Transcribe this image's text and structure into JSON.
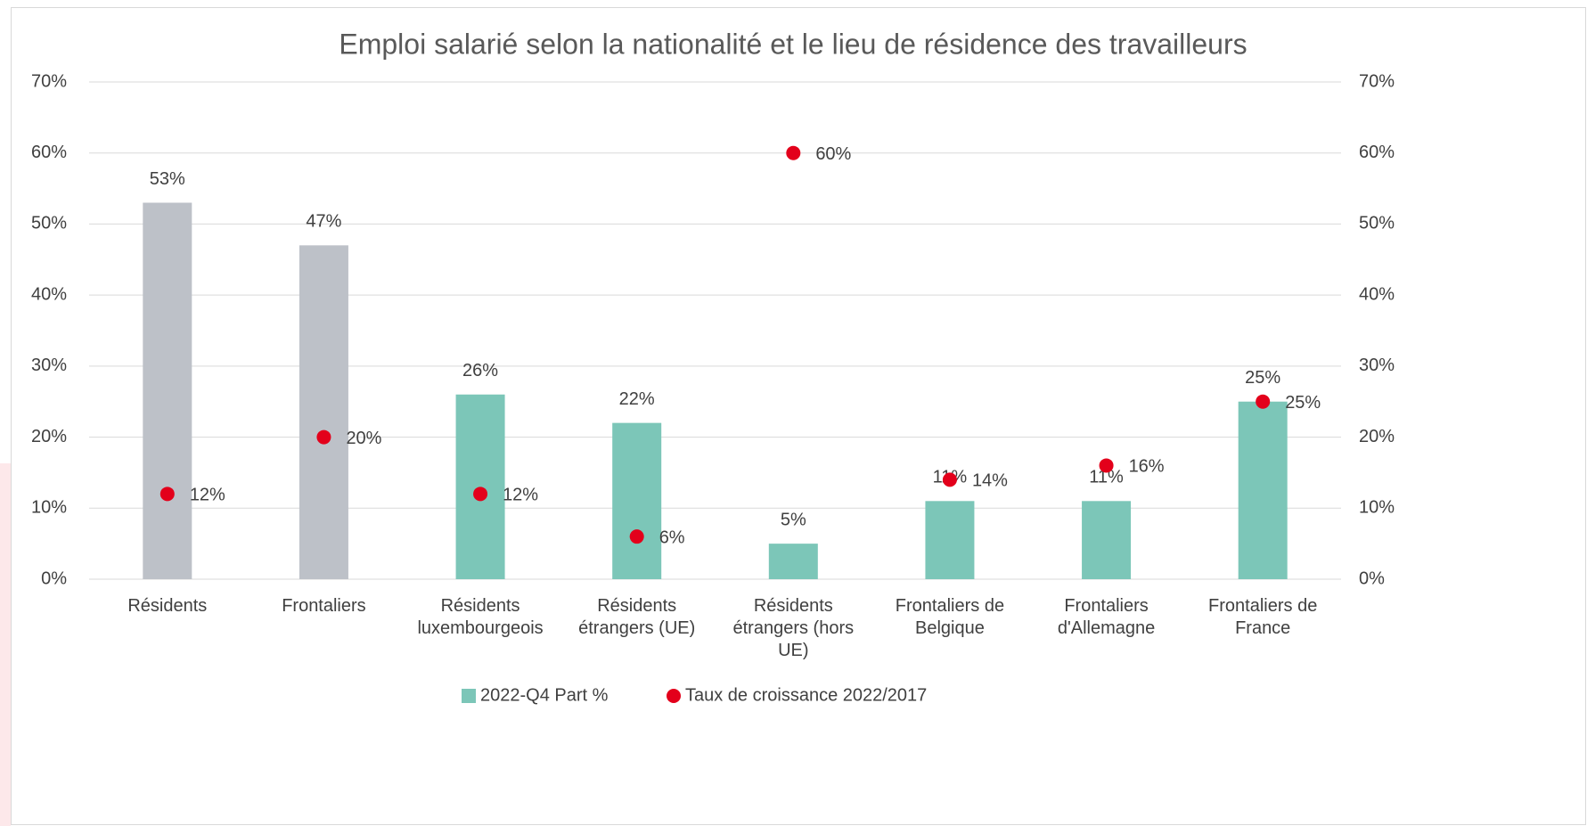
{
  "chart_data": {
    "type": "bar",
    "title": "Emploi salarié selon la nationalité et le lieu de résidence des travailleurs",
    "categories": [
      "Résidents",
      "Frontaliers",
      "Résidents luxembourgeois",
      "Résidents étrangers (UE)",
      "Résidents étrangers (hors UE)",
      "Frontaliers de Belgique",
      "Frontaliers d'Allemagne",
      "Frontaliers de France"
    ],
    "series": [
      {
        "name": "2022-Q4 Part %",
        "type": "bar",
        "color": "#7cc6b8",
        "colors": [
          "#bdc1c8",
          "#bdc1c8",
          "#7cc6b8",
          "#7cc6b8",
          "#7cc6b8",
          "#7cc6b8",
          "#7cc6b8",
          "#7cc6b8"
        ],
        "values": [
          53,
          47,
          26,
          22,
          5,
          11,
          11,
          25
        ],
        "value_labels": [
          "53%",
          "47%",
          "26%",
          "22%",
          "5%",
          "11%",
          "11%",
          "25%"
        ]
      },
      {
        "name": "Taux de croissance 2022/2017",
        "type": "scatter",
        "axis": "y2",
        "color": "#e3001b",
        "values": [
          12,
          20,
          12,
          6,
          60,
          14,
          16,
          25
        ],
        "value_labels": [
          "12%",
          "20%",
          "12%",
          "6%",
          "60%",
          "14%",
          "16%",
          "25%"
        ]
      }
    ],
    "ylim": [
      0,
      70
    ],
    "yticks": [
      {
        "value": 0,
        "label": "0%"
      },
      {
        "value": 10,
        "label": "10%"
      },
      {
        "value": 20,
        "label": "20%"
      },
      {
        "value": 30,
        "label": "30%"
      },
      {
        "value": 40,
        "label": "40%"
      },
      {
        "value": 50,
        "label": "50%"
      },
      {
        "value": 60,
        "label": "60%"
      },
      {
        "value": 70,
        "label": "70%"
      }
    ],
    "y2lim": [
      0,
      70
    ],
    "y2ticks": [
      {
        "value": 0,
        "label": "0%"
      },
      {
        "value": 10,
        "label": "10%"
      },
      {
        "value": 20,
        "label": "20%"
      },
      {
        "value": 30,
        "label": "30%"
      },
      {
        "value": 40,
        "label": "40%"
      },
      {
        "value": 50,
        "label": "50%"
      },
      {
        "value": 60,
        "label": "60%"
      },
      {
        "value": 70,
        "label": "70%"
      }
    ],
    "grid": true,
    "legend": "bottom"
  }
}
